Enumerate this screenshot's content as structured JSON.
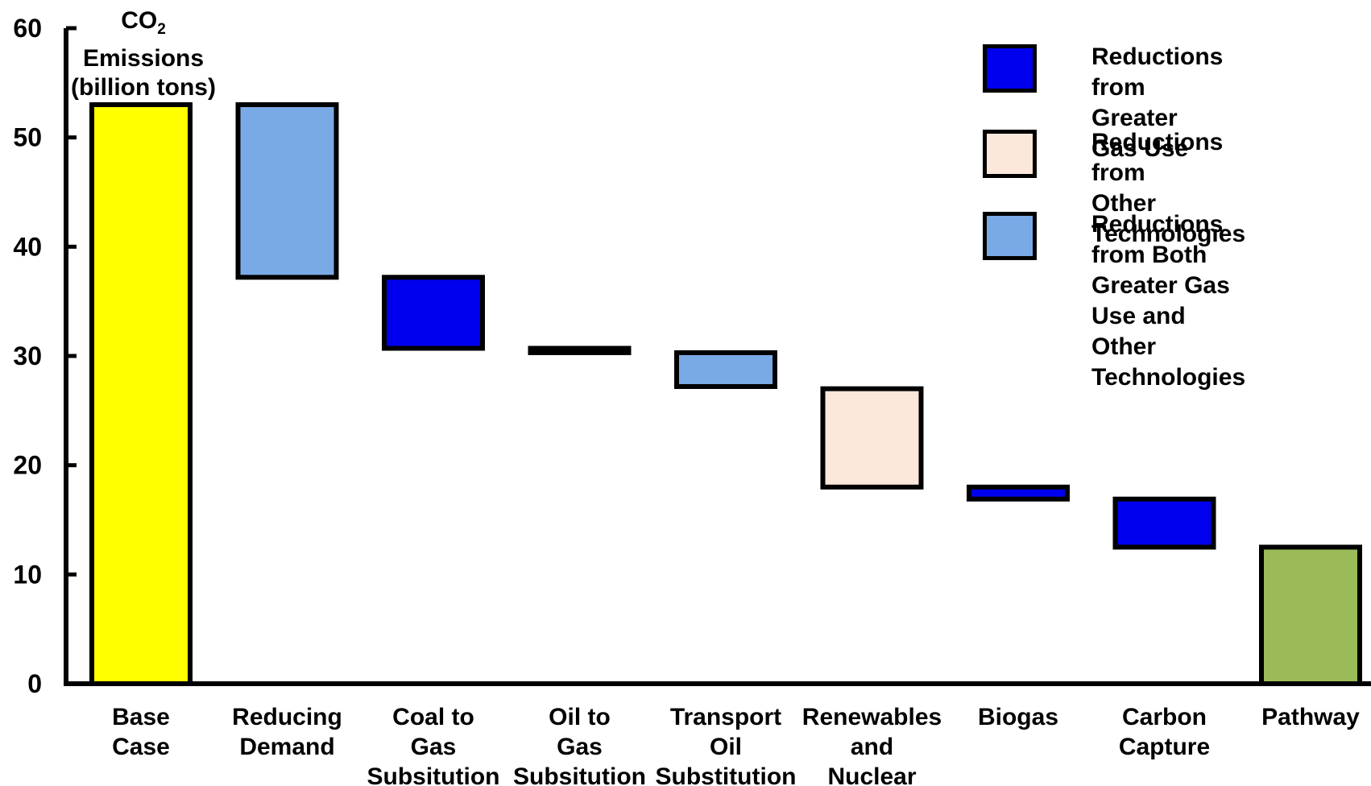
{
  "chart_data": {
    "type": "bar",
    "subtype": "waterfall",
    "ylabel": {
      "main": "CO",
      "sub": "2",
      "rest": "Emissions\n(billion tons)"
    },
    "ylim": [
      0,
      60
    ],
    "yticks": [
      0,
      10,
      20,
      30,
      40,
      50,
      60
    ],
    "grid": false,
    "legend_position": "top-right",
    "categories": [
      "Base\nCase",
      "Reducing\nDemand",
      "Coal to\nGas\nSubsitution",
      "Oil to\nGas\nSubsitution",
      "Transport\nOil\nSubstitution",
      "Renewables\nand\nNuclear",
      "Biogas",
      "Carbon\nCapture",
      "Pathway"
    ],
    "bars": [
      {
        "bottom": 0,
        "top": 53,
        "color": "#ffff00"
      },
      {
        "bottom": 37.2,
        "top": 53,
        "color": "#7aaae6"
      },
      {
        "bottom": 30.7,
        "top": 37.2,
        "color": "#0000ee"
      },
      {
        "bottom": 30.3,
        "top": 30.7,
        "color": "#0000ee"
      },
      {
        "bottom": 27.2,
        "top": 30.3,
        "color": "#7aaae6"
      },
      {
        "bottom": 18.0,
        "top": 27.0,
        "color": "#fce8da"
      },
      {
        "bottom": 16.9,
        "top": 18.0,
        "color": "#0000ee"
      },
      {
        "bottom": 12.5,
        "top": 16.9,
        "color": "#0000ee"
      },
      {
        "bottom": 0,
        "top": 12.5,
        "color": "#9bbb59"
      }
    ],
    "legend": [
      {
        "label": "Reductions from\nGreater Gas Use",
        "color": "#0000ee"
      },
      {
        "label": "Reductions from\nOther Technologies",
        "color": "#fce8da"
      },
      {
        "label": "Reductions from Both\nGreater Gas Use and\nOther Technologies",
        "color": "#7aaae6"
      }
    ]
  }
}
